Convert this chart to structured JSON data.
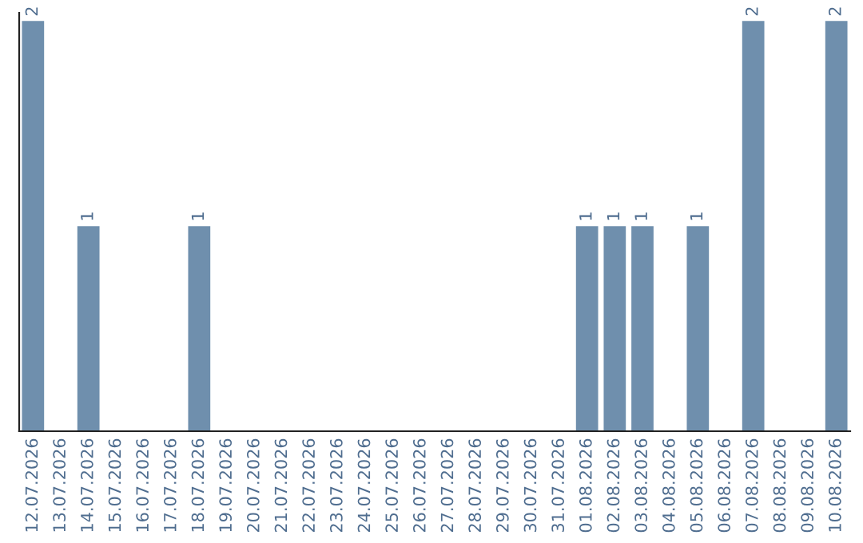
{
  "chart_data": {
    "type": "bar",
    "categories": [
      "12.07.2026",
      "13.07.2026",
      "14.07.2026",
      "15.07.2026",
      "16.07.2026",
      "17.07.2026",
      "18.07.2026",
      "19.07.2026",
      "20.07.2026",
      "21.07.2026",
      "22.07.2026",
      "23.07.2026",
      "24.07.2026",
      "25.07.2026",
      "26.07.2026",
      "27.07.2026",
      "28.07.2026",
      "29.07.2026",
      "30.07.2026",
      "31.07.2026",
      "01.08.2026",
      "02.08.2026",
      "03.08.2026",
      "04.08.2026",
      "05.08.2026",
      "06.08.2026",
      "07.08.2026",
      "08.08.2026",
      "09.08.2026",
      "10.08.2026"
    ],
    "values": [
      2,
      0,
      1,
      0,
      0,
      0,
      1,
      0,
      0,
      0,
      0,
      0,
      0,
      0,
      0,
      0,
      0,
      0,
      0,
      0,
      1,
      1,
      1,
      0,
      1,
      0,
      2,
      0,
      0,
      2
    ],
    "value_labels": [
      "2",
      null,
      "1",
      null,
      null,
      null,
      "1",
      null,
      null,
      null,
      null,
      null,
      null,
      null,
      null,
      null,
      null,
      null,
      null,
      null,
      "1",
      "1",
      "1",
      null,
      "1",
      null,
      "2",
      null,
      null,
      "2"
    ],
    "color": "#6f8fad",
    "ylim": [
      0,
      2.04
    ],
    "tick_labels": "x",
    "grid": false,
    "legend": false
  }
}
